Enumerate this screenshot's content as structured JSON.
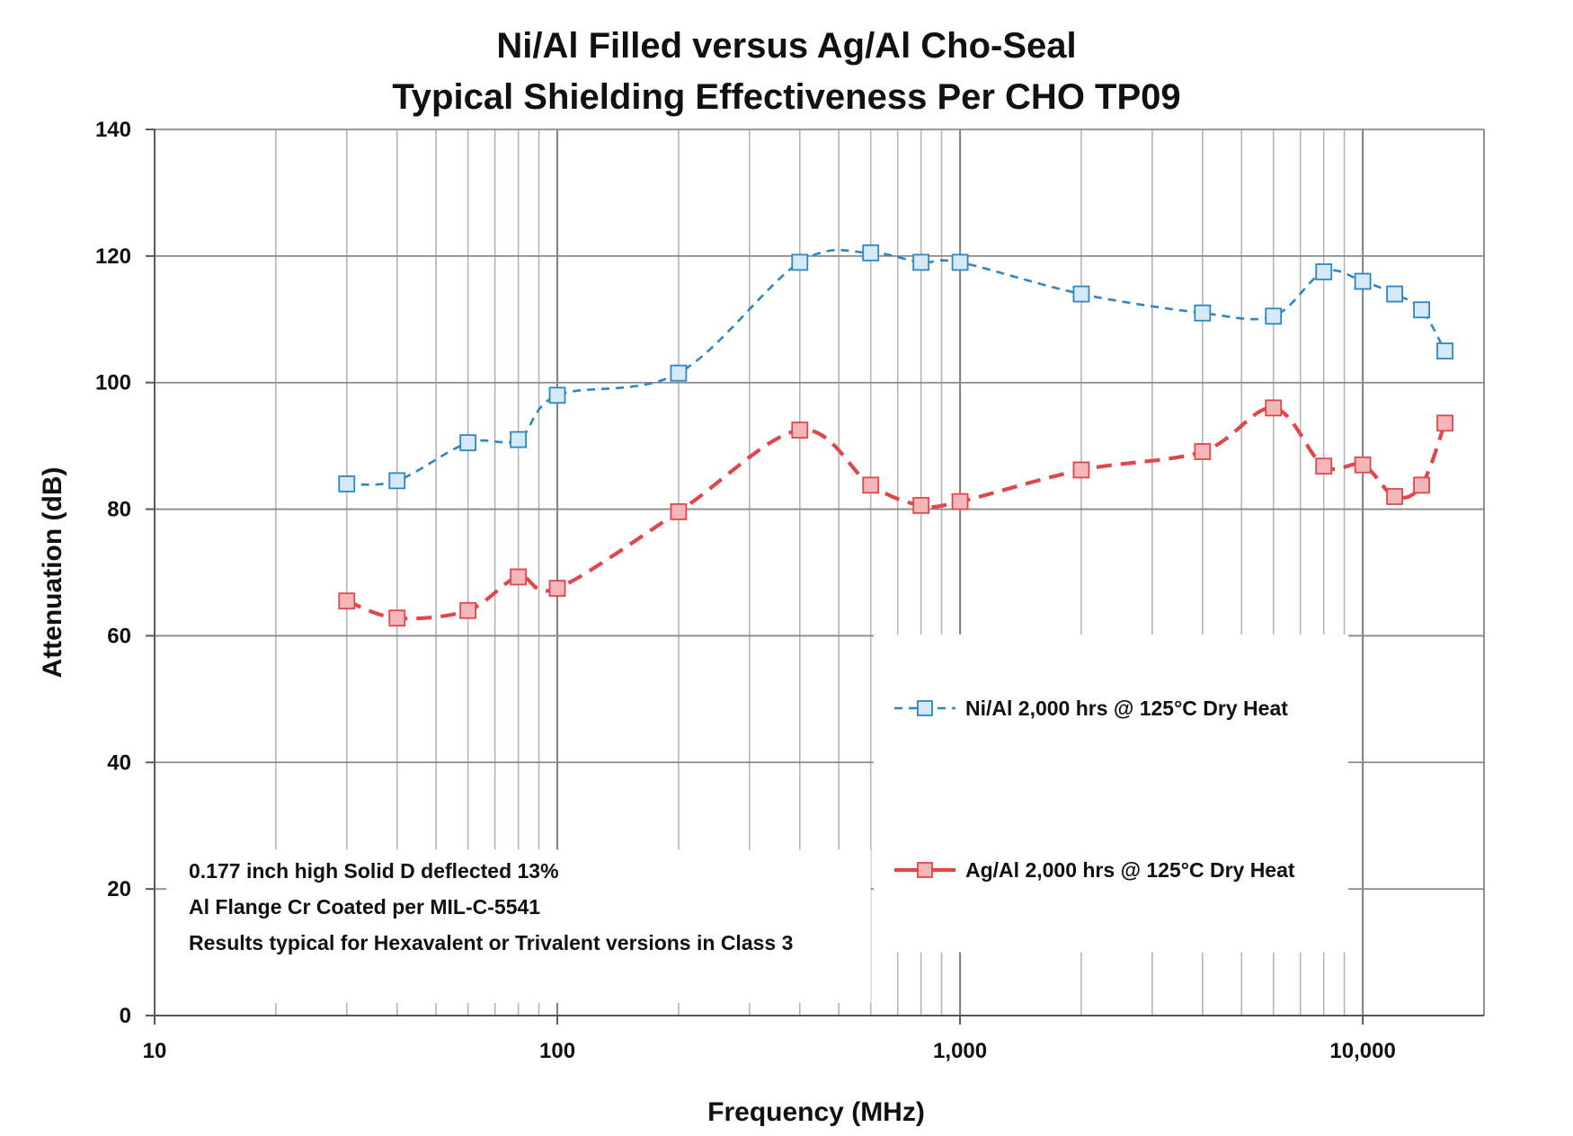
{
  "chart_data": {
    "type": "line",
    "title_line1": "Ni/Al Filled versus Ag/Al Cho-Seal",
    "title_line2": "Typical Shielding Effectiveness Per CHO TP09",
    "xlabel": "Frequency (MHz)",
    "ylabel": "Attenuation (dB)",
    "x_scale": "log",
    "xlim": [
      10,
      20000
    ],
    "ylim": [
      0,
      140
    ],
    "x_ticks": [
      {
        "value": 10,
        "label": "10"
      },
      {
        "value": 100,
        "label": "100"
      },
      {
        "value": 1000,
        "label": "1,000"
      },
      {
        "value": 10000,
        "label": "10,000"
      }
    ],
    "y_ticks": [
      {
        "value": 0,
        "label": "0"
      },
      {
        "value": 20,
        "label": "20"
      },
      {
        "value": 40,
        "label": "40"
      },
      {
        "value": 60,
        "label": "60"
      },
      {
        "value": 80,
        "label": "80"
      },
      {
        "value": 100,
        "label": "100"
      },
      {
        "value": 120,
        "label": "120"
      },
      {
        "value": 140,
        "label": "140"
      }
    ],
    "grid": true,
    "legend_position": "center-right",
    "series": [
      {
        "name": "Ni/Al 2,000 hrs @ 125°C Dry Heat",
        "line_color": "#2E86C1",
        "marker_fill": "#D6E9F8",
        "marker_stroke": "#2E86C1",
        "line_style": "dashed",
        "x": [
          30,
          40,
          60,
          80,
          100,
          200,
          400,
          600,
          800,
          1000,
          2000,
          4000,
          6000,
          8000,
          10000,
          12000,
          14000,
          16000
        ],
        "y": [
          84,
          84.5,
          90.5,
          91,
          98,
          101.5,
          119,
          120.5,
          119,
          119,
          114,
          111,
          110.5,
          117.5,
          116,
          114,
          111.5,
          105
        ]
      },
      {
        "name": "Ag/Al 2,000 hrs @ 125°C Dry Heat",
        "line_color": "#E0474C",
        "marker_fill": "#F4B6B8",
        "marker_stroke": "#E0474C",
        "line_style": "dashed",
        "x": [
          30,
          40,
          60,
          80,
          100,
          200,
          400,
          600,
          800,
          1000,
          2000,
          4000,
          6000,
          8000,
          10000,
          12000,
          14000,
          16000
        ],
        "y": [
          65.5,
          62.8,
          64,
          69.3,
          67.5,
          79.6,
          92.5,
          83.8,
          80.6,
          81.2,
          86.2,
          89.1,
          96,
          86.8,
          87,
          82,
          83.8,
          93.6
        ]
      }
    ],
    "annotations": [
      "0.177 inch high Solid D deflected 13%",
      "Al Flange Cr Coated per MIL-C-5541",
      "Results typical for Hexavalent or Trivalent versions in Class 3"
    ]
  }
}
